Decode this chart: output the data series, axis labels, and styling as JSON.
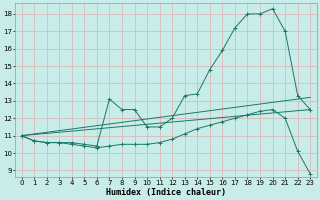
{
  "xlabel": "Humidex (Indice chaleur)",
  "bg_color": "#c8ece8",
  "grid_color": "#e0b0b0",
  "line_color": "#1a7868",
  "xlim": [
    -0.5,
    23.5
  ],
  "ylim": [
    8.6,
    18.6
  ],
  "yticks": [
    9,
    10,
    11,
    12,
    13,
    14,
    15,
    16,
    17,
    18
  ],
  "xticks": [
    0,
    1,
    2,
    3,
    4,
    5,
    6,
    7,
    8,
    9,
    10,
    11,
    12,
    13,
    14,
    15,
    16,
    17,
    18,
    19,
    20,
    21,
    22,
    23
  ],
  "line1_x": [
    0,
    1,
    2,
    3,
    4,
    5,
    6,
    7,
    8,
    9,
    10,
    11,
    12,
    13,
    14,
    15,
    16,
    17,
    18,
    19,
    20,
    21,
    22,
    23
  ],
  "line1_y": [
    11.0,
    10.7,
    10.6,
    10.6,
    10.6,
    10.5,
    10.4,
    13.1,
    12.5,
    12.5,
    11.5,
    11.5,
    12.0,
    13.3,
    13.4,
    14.8,
    15.9,
    17.2,
    18.0,
    18.0,
    18.3,
    17.0,
    13.3,
    12.5
  ],
  "line2_x": [
    0,
    1,
    2,
    3,
    4,
    5,
    6,
    7,
    8,
    9,
    10,
    11,
    12,
    13,
    14,
    15,
    16,
    17,
    18,
    19,
    20,
    21,
    22,
    23
  ],
  "line2_y": [
    11.0,
    10.7,
    10.6,
    10.6,
    10.5,
    10.4,
    10.3,
    10.4,
    10.5,
    10.5,
    10.5,
    10.6,
    10.8,
    11.1,
    11.4,
    11.6,
    11.8,
    12.0,
    12.2,
    12.4,
    12.5,
    12.0,
    10.1,
    8.8
  ],
  "line3_x": [
    0,
    23
  ],
  "line3_y": [
    11.0,
    13.2
  ],
  "line4_x": [
    0,
    23
  ],
  "line4_y": [
    11.0,
    12.5
  ]
}
